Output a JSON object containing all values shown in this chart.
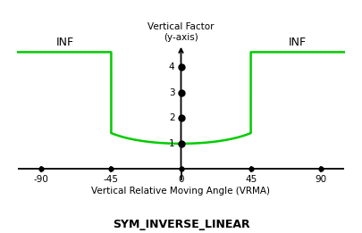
{
  "title_top": "Vertical Factor\n(y-axis)",
  "title_bottom": "SYM_INVERSE_LINEAR",
  "xlabel": "Vertical Relative Moving Angle (VRMA)",
  "inf_label": "INF",
  "x_ticks": [
    -90,
    -45,
    0,
    45,
    90
  ],
  "y_ticks": [
    1,
    2,
    3,
    4
  ],
  "xlim": [
    -105,
    105
  ],
  "ylim": [
    -0.5,
    5.0
  ],
  "curve_color": "#00CC00",
  "curve_linewidth": 1.8,
  "bg_color": "#ffffff",
  "dot_color": "#000000",
  "dot_size": 5,
  "y_axis_dots": [
    1,
    2,
    3,
    4
  ],
  "inf_y_data": 4.6,
  "curve_transition": 45,
  "x_axis_y": 0.0,
  "y_axis_x": 0.0
}
